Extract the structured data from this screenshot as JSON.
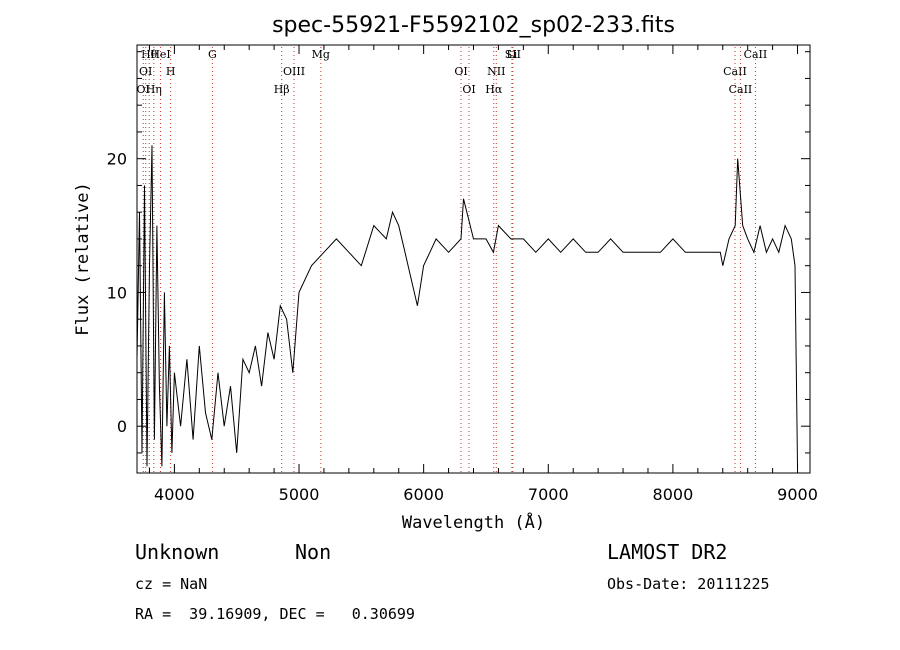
{
  "chart_data": {
    "type": "line",
    "title": "spec-55921-F5592102_sp02-233.fits",
    "xlabel": "Wavelength (Å)",
    "ylabel": "Flux (relative)",
    "xlim": [
      3700,
      9100
    ],
    "ylim": [
      -3.5,
      28.5
    ],
    "xticks": [
      4000,
      5000,
      6000,
      7000,
      8000,
      9000
    ],
    "yticks": [
      0,
      10,
      20
    ],
    "grid": false,
    "series": [
      {
        "x": [
          3700,
          3720,
          3740,
          3760,
          3780,
          3800,
          3820,
          3840,
          3860,
          3880,
          3900,
          3920,
          3940,
          3960,
          3980,
          4000,
          4050,
          4100,
          4150,
          4200,
          4250,
          4300,
          4350,
          4400,
          4450,
          4500,
          4550,
          4600,
          4650,
          4700,
          4750,
          4800,
          4850,
          4900,
          4950,
          5000,
          5100,
          5200,
          5300,
          5400,
          5500,
          5600,
          5700,
          5750,
          5800,
          5850,
          5900,
          5950,
          6000,
          6050,
          6100,
          6200,
          6300,
          6320,
          6400,
          6500,
          6560,
          6600,
          6700,
          6800,
          6900,
          7000,
          7100,
          7200,
          7300,
          7400,
          7500,
          7600,
          7700,
          7800,
          7900,
          8000,
          8100,
          8200,
          8300,
          8380,
          8400,
          8450,
          8500,
          8520,
          8560,
          8600,
          8650,
          8700,
          8750,
          8800,
          8850,
          8900,
          8950,
          8980,
          9000
        ],
        "y": [
          5,
          16,
          -2,
          18,
          -3,
          12,
          21,
          -1,
          15,
          3,
          -3,
          10,
          0,
          6,
          -2,
          4,
          0,
          5,
          -1,
          6,
          1,
          -1,
          4,
          0,
          3,
          -2,
          5,
          4,
          6,
          3,
          7,
          5,
          9,
          8,
          4,
          10,
          12,
          13,
          14,
          13,
          12,
          15,
          14,
          16,
          15,
          13,
          11,
          9,
          12,
          13,
          14,
          13,
          14,
          17,
          14,
          14,
          13,
          15,
          14,
          14,
          13,
          14,
          13,
          14,
          13,
          13,
          14,
          13,
          13,
          13,
          13,
          14,
          13,
          13,
          13,
          13,
          12,
          14,
          15,
          20,
          15,
          14,
          13,
          15,
          13,
          14,
          13,
          15,
          14,
          12,
          -3
        ],
        "interpolation": "linear"
      }
    ],
    "line_markers": [
      {
        "label": "Hθ",
        "x": 3798
      },
      {
        "label": "H",
        "x": 3970
      },
      {
        "label": "OI",
        "x": 3750
      },
      {
        "label": "HeI",
        "x": 3889
      },
      {
        "label": "OI",
        "x": 3770
      },
      {
        "label": "Hη",
        "x": 3835
      },
      {
        "label": "G",
        "x": 4305
      },
      {
        "label": "OIII",
        "x": 4960
      },
      {
        "label": "Hβ",
        "x": 4861
      },
      {
        "label": "Mg",
        "x": 5175
      },
      {
        "label": "OI",
        "x": 6300
      },
      {
        "label": "OI",
        "x": 6364
      },
      {
        "label": "Li",
        "x": 6708
      },
      {
        "label": "NII",
        "x": 6583
      },
      {
        "label": "Hα",
        "x": 6563
      },
      {
        "label": "SII",
        "x": 6716
      },
      {
        "label": "CaII",
        "x": 8498
      },
      {
        "label": "CaII",
        "x": 8542
      },
      {
        "label": "CaII",
        "x": 8662
      }
    ]
  },
  "info": {
    "class": "Unknown",
    "subclass": "Non",
    "survey": "LAMOST DR2",
    "cz": "cz = NaN",
    "obs_date": "Obs-Date: 20111225",
    "coords": "RA =  39.16909, DEC =   0.30699"
  }
}
